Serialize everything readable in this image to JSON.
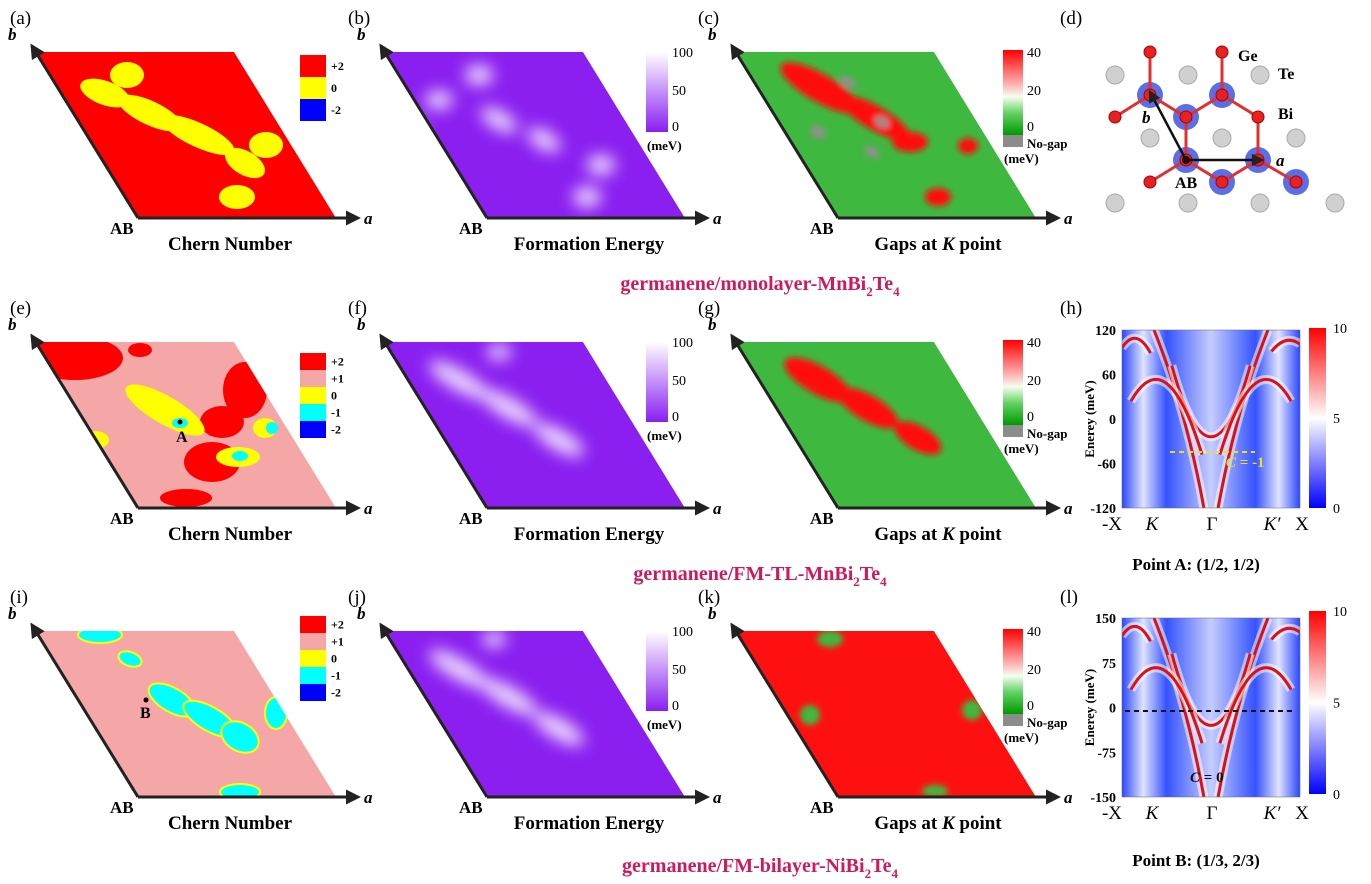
{
  "panel_labels": [
    "(a)",
    "(b)",
    "(c)",
    "(d)",
    "(e)",
    "(f)",
    "(g)",
    "(h)",
    "(i)",
    "(j)",
    "(k)",
    "(l)"
  ],
  "axis_labels": {
    "a": "a",
    "b": "b",
    "origin": "AB"
  },
  "map_titles": {
    "chern": "Chern Number",
    "formation": "Formation Energy",
    "gaps": {
      "pre": "Gaps at ",
      "k": "K",
      "post": " point"
    }
  },
  "formation_bar": {
    "ticks": [
      "100",
      "50",
      "0"
    ],
    "unit": "(meV)"
  },
  "gap_bar": {
    "ticks": [
      "40",
      "20",
      "0"
    ],
    "no_gap": "No-gap",
    "unit": "(meV)"
  },
  "rows": [
    {
      "caption": {
        "pre": "germanene/monolayer-MnBi",
        "sub1": "2",
        "mid": "Te",
        "sub2": "4"
      },
      "chern_legend": [
        {
          "label": "+2",
          "color": "#ff0000"
        },
        {
          "label": "0",
          "color": "#ffff00"
        },
        {
          "label": "-2",
          "color": "#0000ff"
        }
      ]
    },
    {
      "caption": {
        "pre": "germanene/FM-TL-MnBi",
        "sub1": "2",
        "mid": "Te",
        "sub2": "4"
      },
      "chern_legend": [
        {
          "label": "+2",
          "color": "#ff0000"
        },
        {
          "label": "+1",
          "color": "#f4a7a6"
        },
        {
          "label": "0",
          "color": "#ffff00"
        },
        {
          "label": "-1",
          "color": "#00ffff"
        },
        {
          "label": "-2",
          "color": "#0000ff"
        }
      ]
    },
    {
      "caption": {
        "pre": "germanene/FM-bilayer-NiBi",
        "sub1": "2",
        "mid": "Te",
        "sub2": "4"
      },
      "chern_legend": [
        {
          "label": "+2",
          "color": "#ff0000"
        },
        {
          "label": "+1",
          "color": "#f4a7a6"
        },
        {
          "label": "0",
          "color": "#ffff00"
        },
        {
          "label": "-1",
          "color": "#00ffff"
        },
        {
          "label": "-2",
          "color": "#0000ff"
        }
      ]
    }
  ],
  "points": [
    "A",
    "B"
  ],
  "lattice": {
    "ge": "Ge",
    "te": "Te",
    "bi": "Bi",
    "a": "a",
    "b": "b",
    "origin": "AB"
  },
  "bands": [
    {
      "ylabel": "Enerey (meV)",
      "yticks": [
        "120",
        "60",
        "0",
        "-60",
        "-120"
      ],
      "xticks": [
        "-X",
        "K",
        "Γ",
        "K′",
        "X"
      ],
      "colorbar": [
        "10",
        "5",
        "0"
      ],
      "annotation": {
        "c": "C",
        "rest": " = -1"
      },
      "point": "Point A: (1/2, 1/2)"
    },
    {
      "ylabel": "Enerey (meV)",
      "yticks": [
        "150",
        "75",
        "0",
        "-75",
        "-150"
      ],
      "xticks": [
        "-X",
        "K",
        "Γ",
        "K′",
        "X"
      ],
      "colorbar": [
        "10",
        "5",
        "0"
      ],
      "annotation": {
        "c": "C",
        "rest": " = 0"
      },
      "point": "Point B: (1/3, 2/3)"
    }
  ]
}
